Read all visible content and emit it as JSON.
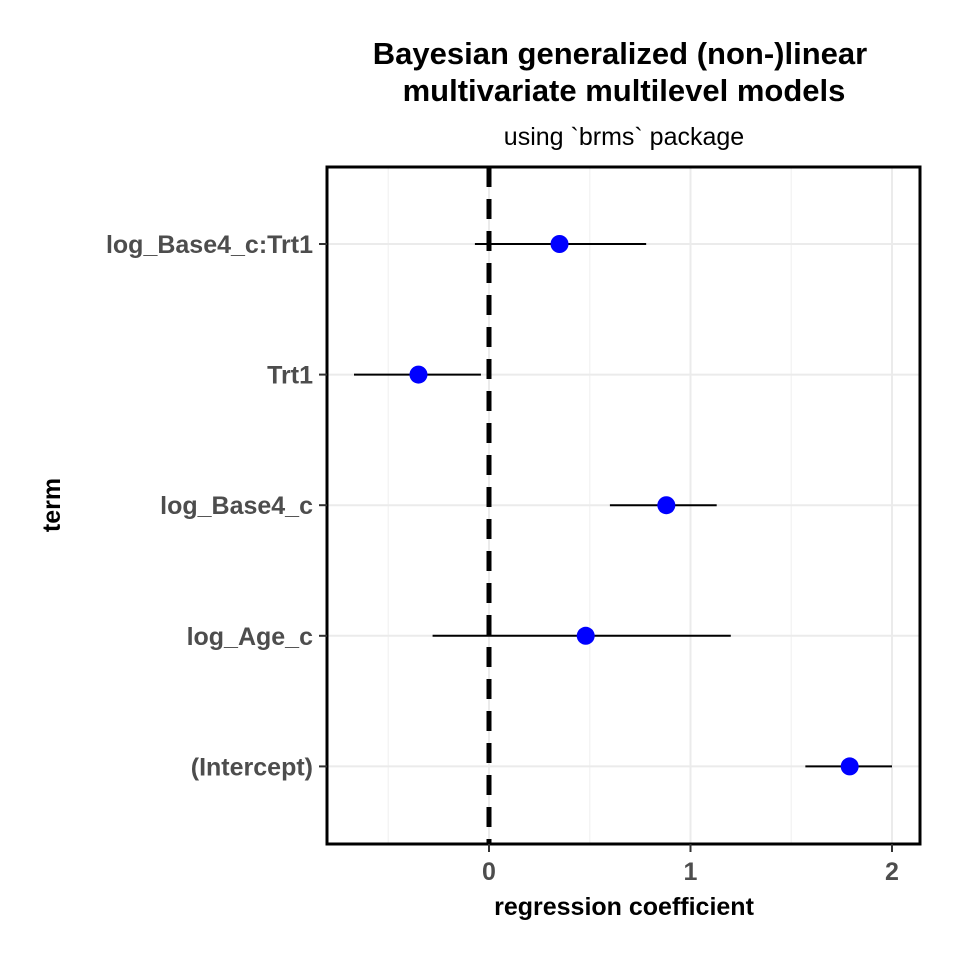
{
  "chart_data": {
    "type": "scatter",
    "title_line1": "Bayesian generalized (non-)linear",
    "title_line2": "multivariate multilevel models",
    "subtitle": "using `brms` package",
    "xlabel": "regression coefficient",
    "ylabel": "term",
    "xlim": [
      -0.8,
      2.14
    ],
    "xticks": [
      0,
      1,
      2
    ],
    "xtick_labels": [
      "0",
      "1",
      "2"
    ],
    "reference_line": 0,
    "point_color": "#0000ff",
    "grid": true,
    "terms": [
      {
        "label": "log_Base4_c:Trt1",
        "estimate": 0.35,
        "lower": -0.07,
        "upper": 0.78
      },
      {
        "label": "Trt1",
        "estimate": -0.35,
        "lower": -0.67,
        "upper": -0.04
      },
      {
        "label": "log_Base4_c",
        "estimate": 0.88,
        "lower": 0.6,
        "upper": 1.13
      },
      {
        "label": "log_Age_c",
        "estimate": 0.48,
        "lower": -0.28,
        "upper": 1.2
      },
      {
        "label": "(Intercept)",
        "estimate": 1.79,
        "lower": 1.57,
        "upper": 2.0
      }
    ]
  }
}
